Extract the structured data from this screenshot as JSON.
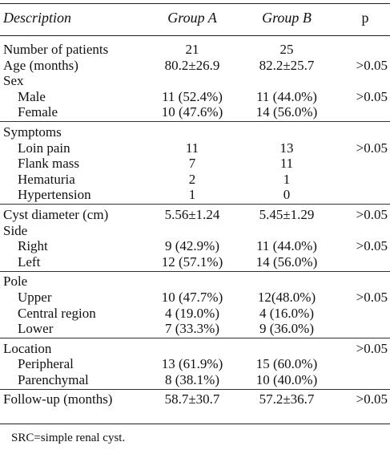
{
  "header": {
    "description": "Description",
    "group_a": "Group A",
    "group_b": "Group B",
    "p": "p"
  },
  "sections": [
    {
      "rows": [
        {
          "label": "Number of patients",
          "a": "21",
          "b": "25",
          "p": "",
          "indent": false
        },
        {
          "label": "Age (months)",
          "a": "80.2±26.9",
          "b": "82.2±25.7",
          "p": ">0.05",
          "indent": false
        },
        {
          "label": "Sex",
          "a": "",
          "b": "",
          "p": "",
          "indent": false
        },
        {
          "label": "Male",
          "a": "11 (52.4%)",
          "b": "11 (44.0%)",
          "p": ">0.05",
          "indent": true
        },
        {
          "label": "Female",
          "a": "10 (47.6%)",
          "b": "14 (56.0%)",
          "p": "",
          "indent": true
        }
      ]
    },
    {
      "rows": [
        {
          "label": "Symptoms",
          "a": "",
          "b": "",
          "p": "",
          "indent": false
        },
        {
          "label": "Loin pain",
          "a": "11",
          "b": "13",
          "p": ">0.05",
          "indent": true
        },
        {
          "label": "Flank mass",
          "a": "7",
          "b": "11",
          "p": "",
          "indent": true
        },
        {
          "label": "Hematuria",
          "a": "2",
          "b": "1",
          "p": "",
          "indent": true
        },
        {
          "label": "Hypertension",
          "a": "1",
          "b": "0",
          "p": "",
          "indent": true
        }
      ]
    },
    {
      "rows": [
        {
          "label": "Cyst diameter (cm)",
          "a": "5.56±1.24",
          "b": "5.45±1.29",
          "p": ">0.05",
          "indent": false
        },
        {
          "label": "Side",
          "a": "",
          "b": "",
          "p": "",
          "indent": false
        },
        {
          "label": "Right",
          "a": "9 (42.9%)",
          "b": "11 (44.0%)",
          "p": ">0.05",
          "indent": true
        },
        {
          "label": "Left",
          "a": "12 (57.1%)",
          "b": "14 (56.0%)",
          "p": "",
          "indent": true
        }
      ]
    },
    {
      "rows": [
        {
          "label": "Pole",
          "a": "",
          "b": "",
          "p": "",
          "indent": false
        },
        {
          "label": "Upper",
          "a": "10 (47.7%)",
          "b": "12(48.0%)",
          "p": ">0.05",
          "indent": true
        },
        {
          "label": "Central region",
          "a": "4 (19.0%)",
          "b": "4 (16.0%)",
          "p": "",
          "indent": true
        },
        {
          "label": "Lower",
          "a": "7 (33.3%)",
          "b": "9 (36.0%)",
          "p": "",
          "indent": true
        }
      ]
    },
    {
      "rows": [
        {
          "label": "Location",
          "a": "",
          "b": "",
          "p": ">0.05",
          "indent": false
        },
        {
          "label": "Peripheral",
          "a": "13 (61.9%)",
          "b": "15 (60.0%)",
          "p": "",
          "indent": true
        },
        {
          "label": "Parenchymal",
          "a": "8 (38.1%)",
          "b": "10 (40.0%)",
          "p": "",
          "indent": true
        }
      ]
    },
    {
      "rows": [
        {
          "label": "Follow-up (months)",
          "a": "58.7±30.7",
          "b": "57.2±36.7",
          "p": ">0.05",
          "indent": false
        }
      ]
    }
  ],
  "footnote": "SRC=simple renal cyst."
}
